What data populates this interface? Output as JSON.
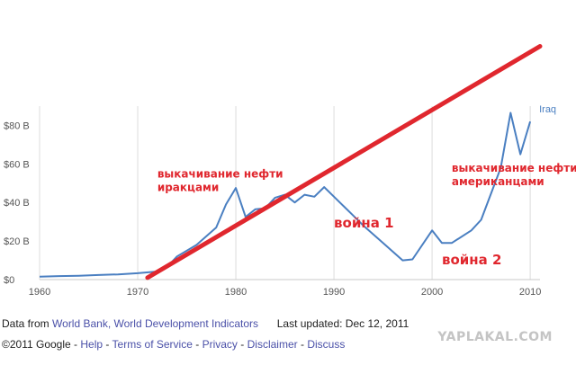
{
  "chart_data": {
    "type": "line",
    "title": "",
    "xlabel": "",
    "ylabel": "",
    "xlim": [
      1960,
      2011
    ],
    "ylim": [
      0,
      90
    ],
    "x_ticks": [
      1960,
      1970,
      1980,
      1990,
      2000,
      2010
    ],
    "x_tick_labels": [
      "1960",
      "1970",
      "1980",
      "1990",
      "2000",
      "2010"
    ],
    "y_ticks": [
      0,
      20,
      40,
      60,
      80
    ],
    "y_tick_labels": [
      "$0",
      "$20 B",
      "$40 B",
      "$60 B",
      "$80 B"
    ],
    "grid": "vertical",
    "series": [
      {
        "name": "Iraq",
        "color": "#4a7fc1",
        "points": [
          [
            1960,
            1.5
          ],
          [
            1962,
            1.8
          ],
          [
            1964,
            2.0
          ],
          [
            1966,
            2.4
          ],
          [
            1968,
            2.7
          ],
          [
            1970,
            3.3
          ],
          [
            1972,
            4.2
          ],
          [
            1973,
            6.5
          ],
          [
            1974,
            12.0
          ],
          [
            1976,
            18.0
          ],
          [
            1978,
            27.0
          ],
          [
            1979,
            39.0
          ],
          [
            1980,
            47.5
          ],
          [
            1981,
            32.5
          ],
          [
            1982,
            36.5
          ],
          [
            1983,
            37.0
          ],
          [
            1984,
            42.5
          ],
          [
            1985,
            44.0
          ],
          [
            1986,
            40.0
          ],
          [
            1987,
            44.0
          ],
          [
            1988,
            43.0
          ],
          [
            1989,
            48.0
          ],
          [
            1990,
            43.0
          ],
          [
            1991,
            38.0
          ],
          [
            1992,
            33.0
          ],
          [
            1993,
            28.0
          ],
          [
            1995,
            19.0
          ],
          [
            1997,
            10.0
          ],
          [
            1998,
            10.5
          ],
          [
            2000,
            25.5
          ],
          [
            2001,
            19.0
          ],
          [
            2002,
            19.0
          ],
          [
            2004,
            25.5
          ],
          [
            2005,
            31.0
          ],
          [
            2007,
            58.0
          ],
          [
            2008,
            86.5
          ],
          [
            2009,
            65.0
          ],
          [
            2010,
            82.0
          ]
        ]
      }
    ],
    "annotations": [
      {
        "text": "выкачивание нефти",
        "x": 1972,
        "y": 53
      },
      {
        "text": "иракцами",
        "x": 1972,
        "y": 46
      },
      {
        "text": "выкачивание нефти",
        "x": 2002,
        "y": 56
      },
      {
        "text": "американцами",
        "x": 2002,
        "y": 49
      },
      {
        "text": "война 1",
        "x": 1990,
        "y": 27
      },
      {
        "text": "война 2",
        "x": 2001,
        "y": 8
      }
    ],
    "trend_line": {
      "color": "#e0272e",
      "from": [
        1971,
        1
      ],
      "to": [
        2011,
        121
      ]
    }
  },
  "footer": {
    "data_from": "Data from",
    "source_link": "World Bank, World Development Indicators",
    "last_updated": "Last updated: Dec 12, 2011",
    "copyright": "©2011 Google",
    "sep": "-",
    "links": [
      "Help",
      "Terms of Service",
      "Privacy",
      "Disclaimer",
      "Discuss"
    ]
  },
  "watermark": "YAPLAKAL.COM"
}
